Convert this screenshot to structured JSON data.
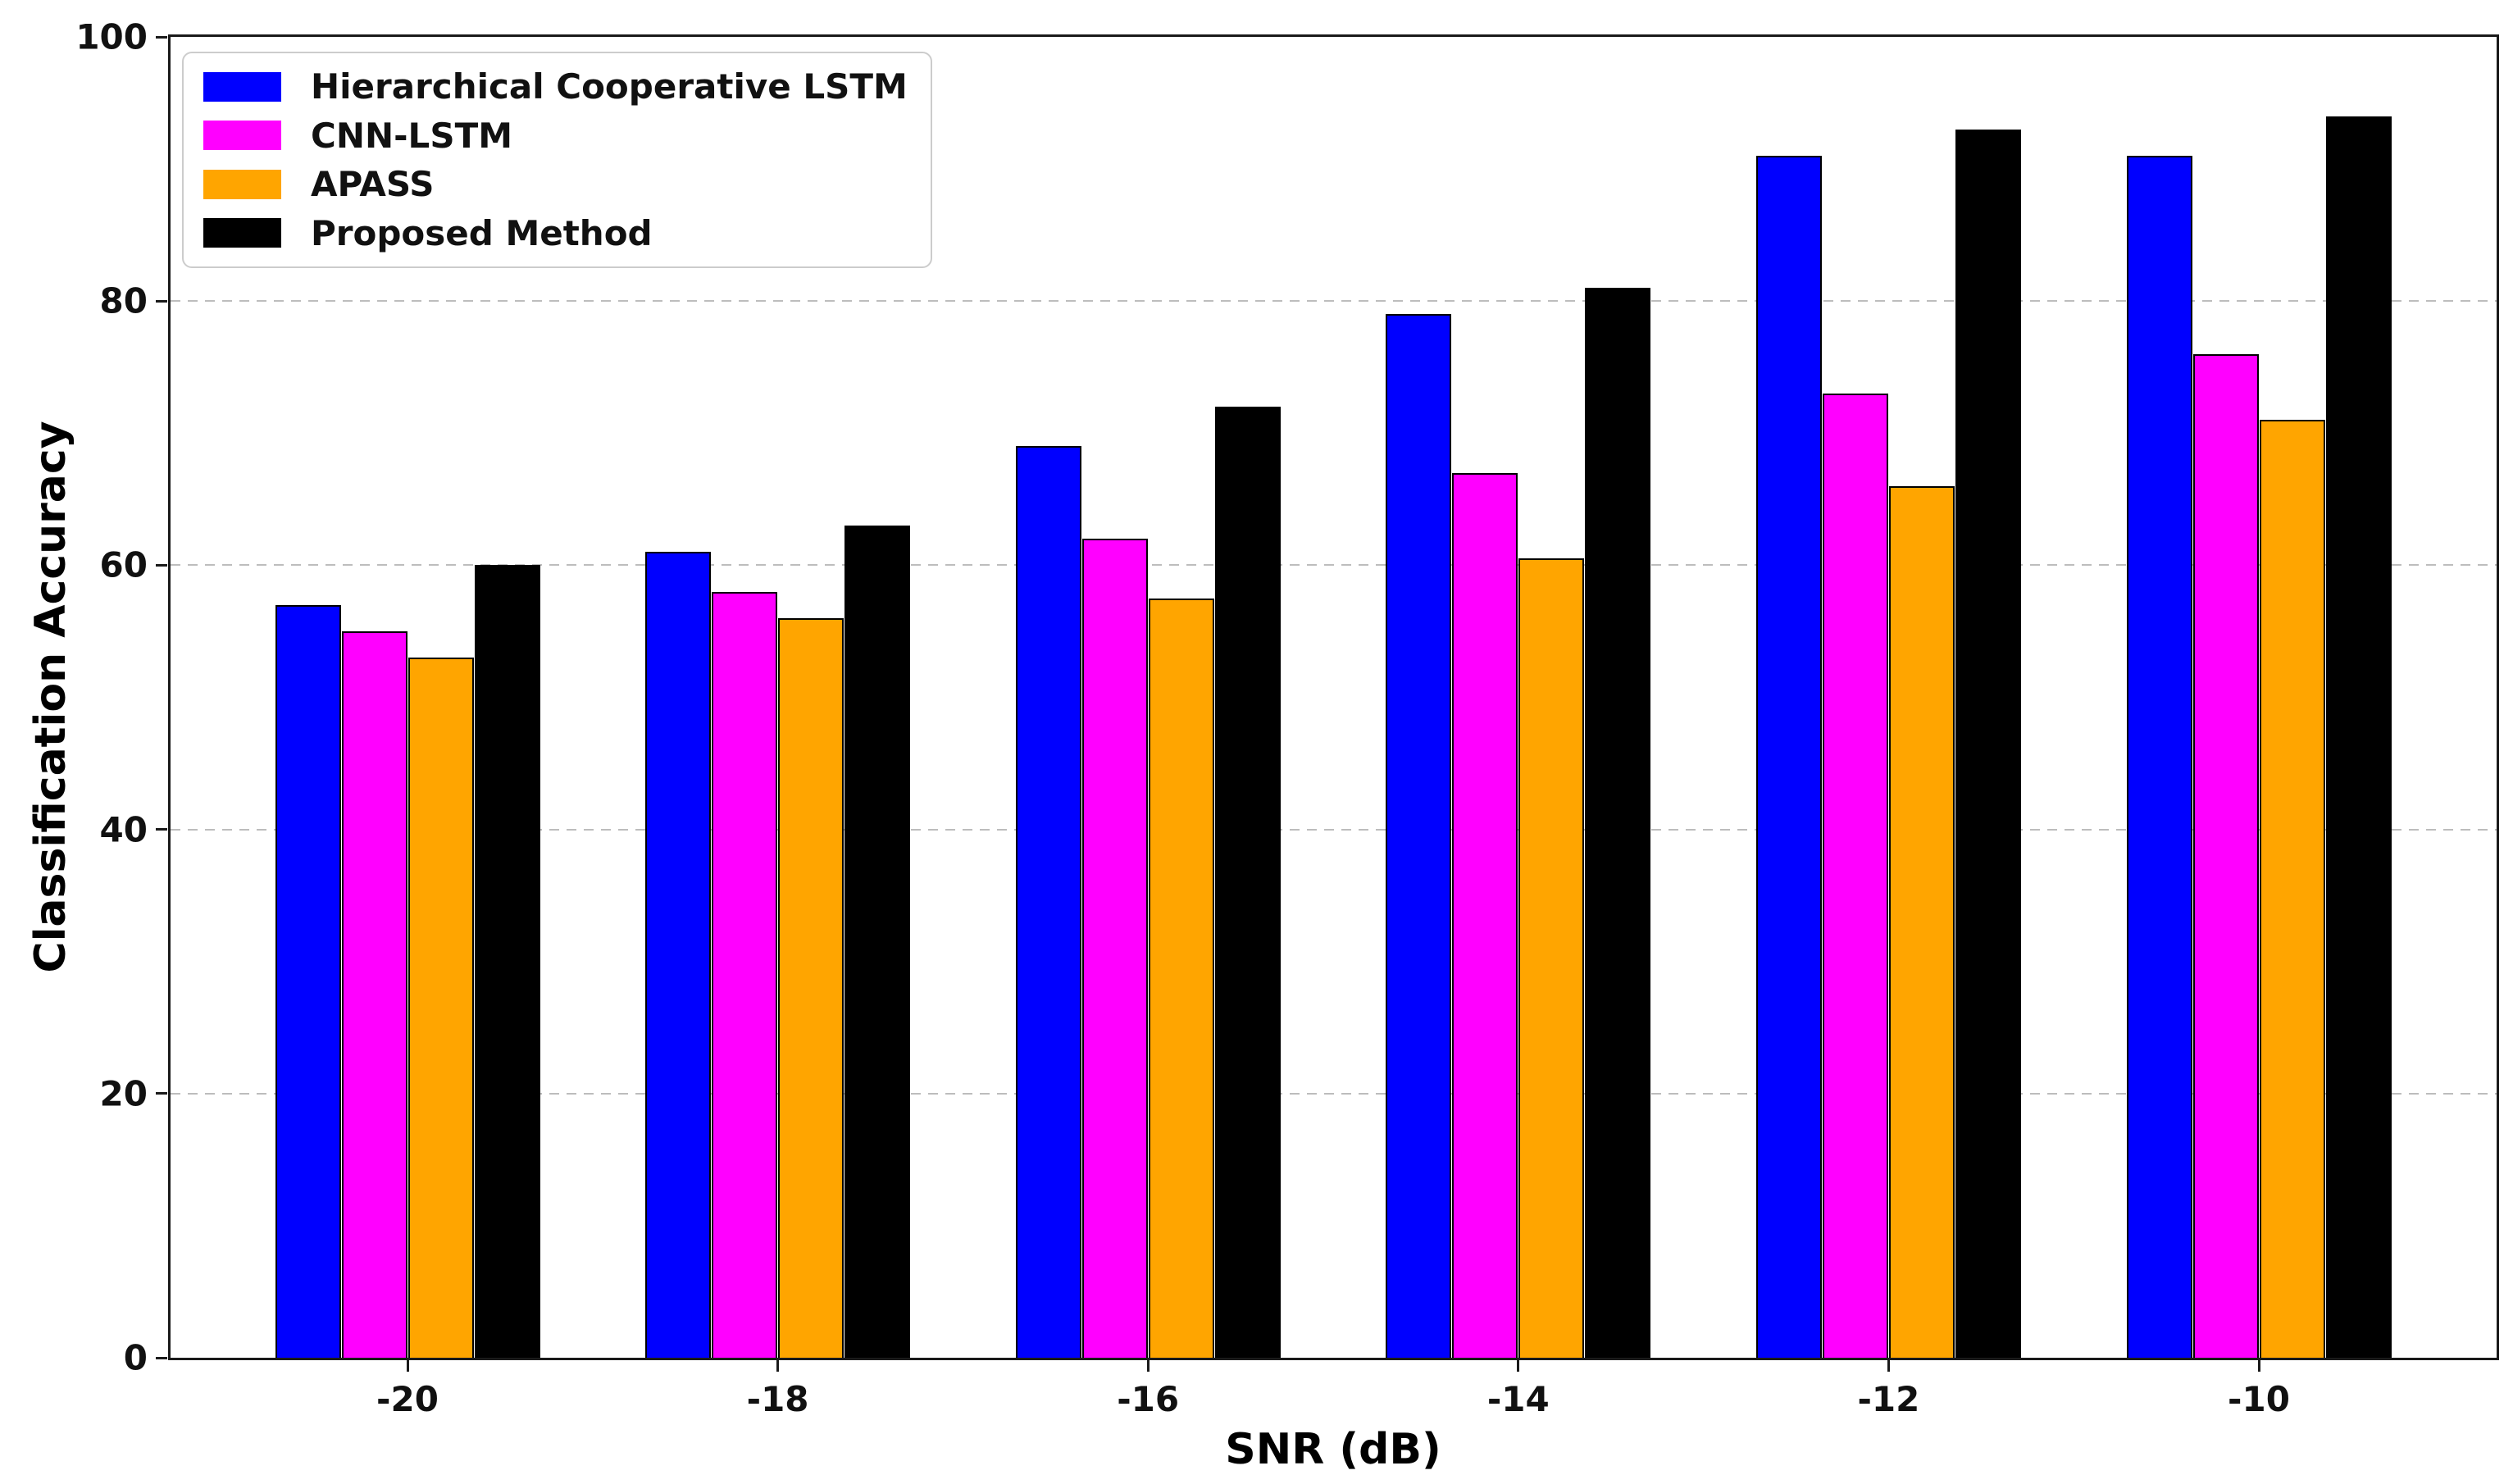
{
  "figure": {
    "background": "#ffffff",
    "spine_color": "#1a1a1a",
    "gridline_color": "#bdbdbd"
  },
  "chart_data": {
    "type": "bar",
    "title": "",
    "xlabel": "SNR (dB)",
    "ylabel": "Classification Accuracy",
    "categories": [
      "-20",
      "-18",
      "-16",
      "-14",
      "-12",
      "-10"
    ],
    "series": [
      {
        "name": "Hierarchical Cooperative LSTM",
        "color": "#0000ff",
        "values": [
          57,
          61,
          69,
          79,
          91,
          91
        ]
      },
      {
        "name": "CNN-LSTM",
        "color": "#ff00ff",
        "values": [
          55,
          58,
          62,
          67,
          73,
          76
        ]
      },
      {
        "name": "APASS",
        "color": "#ffa500",
        "values": [
          53,
          56,
          57.5,
          60.5,
          66,
          71
        ]
      },
      {
        "name": "Proposed Method",
        "color": "#000000",
        "values": [
          60,
          63,
          72,
          81,
          93,
          94
        ]
      }
    ],
    "ylim": [
      0,
      100
    ],
    "yticks": [
      0,
      20,
      40,
      60,
      80,
      100
    ],
    "grid": "horizontal-dashed",
    "legend_position": "upper-left",
    "bar_edge_color": "#000000"
  }
}
